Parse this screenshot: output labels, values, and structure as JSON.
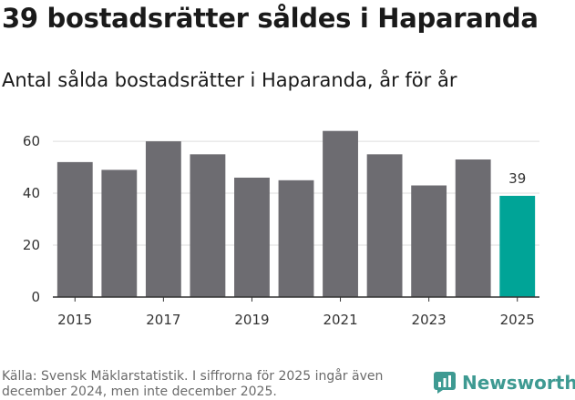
{
  "title": "39 bostadsrätter såldes i Haparanda",
  "subtitle": "Antal sålda bostadsrätter i Haparanda, år för år",
  "source": "Källa: Svensk Mäklarstatistik. I siffrorna för 2025 ingår även december 2024, men inte december 2025.",
  "brand": {
    "name": "Newsworthy",
    "color": "#3e9a92",
    "icon": "newsworthy-logo-icon"
  },
  "colors": {
    "bar": "#6d6c71",
    "highlight": "#00a497",
    "grid": "#dddddd",
    "axis": "#333333"
  },
  "chart_data": {
    "type": "bar",
    "title": "Antal sålda bostadsrätter i Haparanda, år för år",
    "xlabel": "",
    "ylabel": "",
    "categories": [
      "2015",
      "2016",
      "2017",
      "2018",
      "2019",
      "2020",
      "2021",
      "2022",
      "2023",
      "2024",
      "2025"
    ],
    "values": [
      52,
      49,
      60,
      55,
      46,
      45,
      64,
      55,
      43,
      53,
      39
    ],
    "highlight_index": 10,
    "data_labels": [
      {
        "index": 10,
        "text": "39"
      }
    ],
    "ylim": [
      0,
      66
    ],
    "yticks": [
      0,
      20,
      40,
      60
    ],
    "xtick_labels": [
      "2015",
      "2017",
      "2019",
      "2021",
      "2023",
      "2025"
    ],
    "grid": true,
    "legend": "none"
  }
}
